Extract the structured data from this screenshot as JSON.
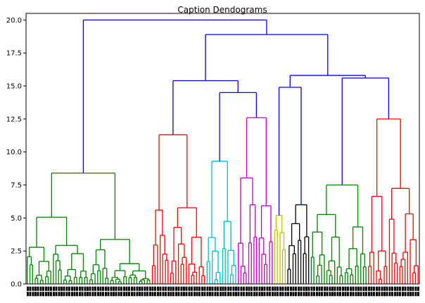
{
  "chart_data": {
    "type": "dendrogram",
    "title": "Caption Dendograms",
    "xlabel": "",
    "ylabel": "",
    "ylim": [
      0,
      20.5
    ],
    "yticks": [
      "0.0",
      "2.5",
      "5.0",
      "7.5",
      "10.0",
      "12.5",
      "15.0",
      "17.5",
      "20.0"
    ],
    "grid": false,
    "legend": "none",
    "colors": {
      "green": "#008000",
      "red": "#ff0000",
      "cyan": "#00bfbf",
      "magenta": "#bf00bf",
      "yellow": "#bfbf00",
      "black": "#000000",
      "blue": "#0000ff"
    },
    "clusters": [
      {
        "name": "c1",
        "color": "green",
        "leaves": 48,
        "height": 8.4
      },
      {
        "name": "c2",
        "color": "red",
        "leaves": 21,
        "height": 11.3
      },
      {
        "name": "c3",
        "color": "cyan",
        "leaves": 12,
        "height": 9.3
      },
      {
        "name": "c4",
        "color": "magenta",
        "leaves": 14,
        "height": 12.6
      },
      {
        "name": "c5",
        "color": "yellow",
        "leaves": 5,
        "height": 5.2
      },
      {
        "name": "c6",
        "color": "black",
        "leaves": 9,
        "height": 6.0
      },
      {
        "name": "c7",
        "color": "green",
        "leaves": 22,
        "height": 7.5
      },
      {
        "name": "c8",
        "color": "red",
        "leaves": 20,
        "height": 12.5
      }
    ],
    "merges": [
      {
        "left": "c3",
        "right": "c4",
        "height": 14.5,
        "id": "m1"
      },
      {
        "left": "c2",
        "right": "m1",
        "height": 15.4,
        "id": "m2"
      },
      {
        "left": "c5",
        "right": "c6",
        "height": 14.9,
        "id": "m3"
      },
      {
        "left": "c7",
        "right": "c8",
        "height": 15.6,
        "id": "m4"
      },
      {
        "left": "m3",
        "right": "m4",
        "height": 15.8,
        "id": "m5"
      },
      {
        "left": "m2",
        "right": "m5",
        "height": 18.9,
        "id": "m6"
      },
      {
        "left": "c1",
        "right": "m6",
        "height": 20.0,
        "id": "m7"
      }
    ],
    "link_color": "blue"
  }
}
